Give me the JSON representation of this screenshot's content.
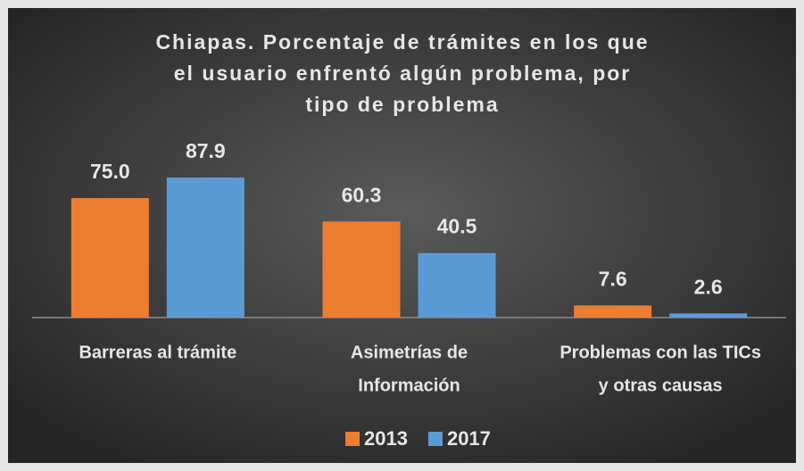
{
  "chart_data": {
    "type": "bar",
    "title": [
      "Chiapas. Porcentaje de trámites en los que",
      "el usuario enfrentó algún problema, por",
      "tipo de problema"
    ],
    "categories": [
      [
        "Barreras al trámite"
      ],
      [
        "Asimetrías  de",
        "Información"
      ],
      [
        "Problemas con las TICs",
        "y otras causas"
      ]
    ],
    "series": [
      {
        "name": "2013",
        "color": "#ED7D31",
        "values": [
          75.0,
          60.3,
          7.6
        ],
        "value_labels": [
          "75.0",
          "60.3",
          "7.6"
        ]
      },
      {
        "name": "2017",
        "color": "#5B9BD5",
        "values": [
          87.9,
          40.5,
          2.6
        ],
        "value_labels": [
          "87.9",
          "40.5",
          "2.6"
        ]
      }
    ],
    "legend": "bottom"
  }
}
